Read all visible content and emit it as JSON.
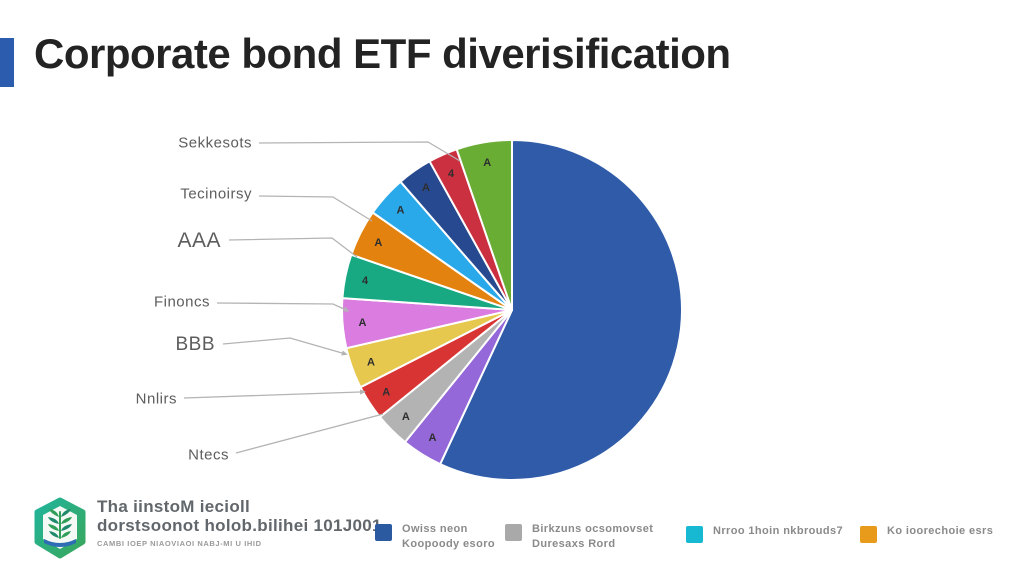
{
  "header": {
    "title": "Corporate bond ETF diverisification",
    "accent_color": "#2b5cad"
  },
  "chart_data": {
    "type": "pie",
    "title": "Corporate bond ETF diverisification",
    "legend_position": "bottom",
    "start_angle_deg_from_top": 0,
    "direction": "clockwise",
    "slices": [
      {
        "label": "main-dark-blue",
        "deg": 205,
        "pct": 56.9,
        "color": "#2f5ba8",
        "glyph": ""
      },
      {
        "label": "purple",
        "deg": 14,
        "pct": 3.9,
        "color": "#9468d8",
        "glyph": "A"
      },
      {
        "label": "gray",
        "deg": 12,
        "pct": 3.3,
        "color": "#b3b3b3",
        "glyph": "A"
      },
      {
        "label": "red",
        "deg": 12,
        "pct": 3.3,
        "color": "#d93434",
        "glyph": "A"
      },
      {
        "label": "yellow",
        "deg": 14,
        "pct": 3.9,
        "color": "#e6c84f",
        "glyph": "A"
      },
      {
        "label": "magenta",
        "deg": 17,
        "pct": 4.7,
        "color": "#da7ce0",
        "glyph": "A"
      },
      {
        "label": "teal",
        "deg": 15,
        "pct": 4.2,
        "color": "#18a983",
        "glyph": "4"
      },
      {
        "label": "orange",
        "deg": 16,
        "pct": 4.4,
        "color": "#e3820e",
        "glyph": "A"
      },
      {
        "label": "light-blue",
        "deg": 14,
        "pct": 3.9,
        "color": "#2aa9ea",
        "glyph": "A"
      },
      {
        "label": "navy",
        "deg": 12,
        "pct": 3.3,
        "color": "#27498f",
        "glyph": "A"
      },
      {
        "label": "crimson",
        "deg": 10,
        "pct": 2.8,
        "color": "#cb3040",
        "glyph": "4"
      },
      {
        "label": "green",
        "deg": 19,
        "pct": 5.3,
        "color": "#69ad35",
        "glyph": "A"
      }
    ],
    "callouts": [
      "Sekkesots",
      "Tecinoirsy",
      "AAA",
      "Finoncs",
      "BBB",
      "Nnlirs",
      "Ntecs"
    ]
  },
  "legend": {
    "items": [
      {
        "color": "#2b5aa0",
        "lines": [
          "Owiss neon",
          "Koopoody esoro"
        ]
      },
      {
        "color": "#a9a9a9",
        "lines": [
          "Birkzuns ocsomovset",
          "Duresaxs Rord"
        ]
      },
      {
        "color": "#17b9d2",
        "lines": [
          "Nrroo 1hoin nkbrouds7"
        ]
      },
      {
        "color": "#e89b1b",
        "lines": [
          "Ko ioorechoie esrs"
        ]
      }
    ]
  },
  "footer": {
    "org_line1": "Tha iinstoM iecioll",
    "org_line2": "dorstsoonot holob.bilihei 101J001",
    "org_line3": "CAMBI IOEP NIAOVIAOI NABJ-MI U IHID"
  }
}
